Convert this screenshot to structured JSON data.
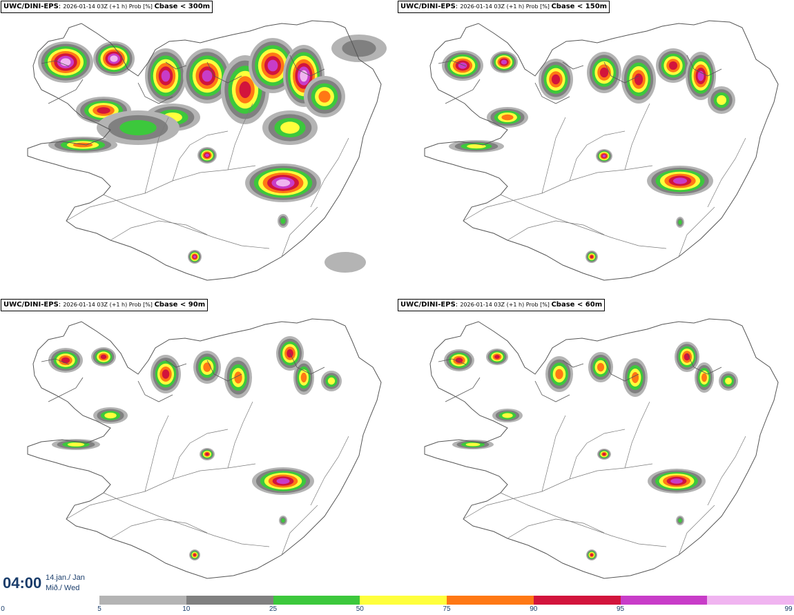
{
  "panels": [
    {
      "model": "UWC/DINI-EPS",
      "meta": "2026-01-14 03Z (+1 h) Prob [%]",
      "threshold": "Cbase < 300m"
    },
    {
      "model": "UWC/DINI-EPS",
      "meta": "2026-01-14 03Z (+1 h) Prob [%]",
      "threshold": "Cbase < 150m"
    },
    {
      "model": "UWC/DINI-EPS",
      "meta": "2026-01-14 03Z (+1 h) Prob [%]",
      "threshold": "Cbase < 90m"
    },
    {
      "model": "UWC/DINI-EPS",
      "meta": "2026-01-14 03Z (+1 h) Prob [%]",
      "threshold": "Cbase < 60m"
    }
  ],
  "time": {
    "clock": "04:00",
    "date_line1": "14.jan./ Jan",
    "date_line2": "Mið./ Wed"
  },
  "legend": {
    "ticks": [
      "0",
      "5",
      "10",
      "25",
      "50",
      "75",
      "90",
      "95",
      "99"
    ],
    "colors": [
      "#b4b4b4",
      "#808080",
      "#3cc83c",
      "#ffff3c",
      "#ff7814",
      "#d2143c",
      "#c83cc8",
      "#f0b4f0"
    ]
  },
  "colors": {
    "coast": "#555555",
    "road": "#7a7a7a",
    "text_blue": "#1a3d6b"
  }
}
